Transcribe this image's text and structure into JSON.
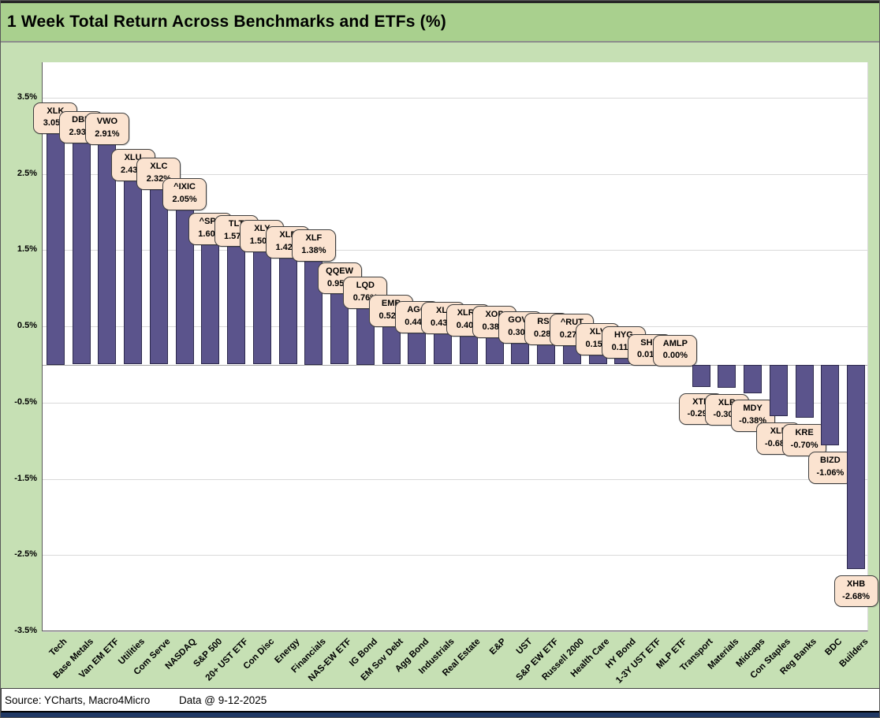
{
  "title": "1 Week Total Return Across Benchmarks and ETFs (%)",
  "footer": {
    "source": "Source: YCharts, Macro4Micro",
    "data_note": "Data @ 9-12-2025"
  },
  "colors": {
    "canvas_bg": "#c6e0b4",
    "title_bg": "#a9d08e",
    "plot_bg": "#ffffff",
    "grid": "#d9d9d9",
    "bar_fill": "#5b548c",
    "bar_border": "#2d2a4d",
    "callout_bg": "#fbe3d0",
    "callout_border": "#3f3f3f",
    "bottom_strip": "#1f3864"
  },
  "chart_data": {
    "type": "bar",
    "title": "1 Week Total Return Across Benchmarks and ETFs (%)",
    "xlabel": "",
    "ylabel": "",
    "ylim": [
      -3.5,
      3.5
    ],
    "grid": true,
    "legend": false,
    "yticks": [
      {
        "label": "3.5%",
        "value": 3.5
      },
      {
        "label": "2.5%",
        "value": 2.5
      },
      {
        "label": "1.5%",
        "value": 1.5
      },
      {
        "label": "0.5%",
        "value": 0.5
      },
      {
        "label": "-0.5%",
        "value": -0.5
      },
      {
        "label": "-1.5%",
        "value": -1.5
      },
      {
        "label": "-2.5%",
        "value": -2.5
      },
      {
        "label": "-3.5%",
        "value": -3.5
      }
    ],
    "categories": [
      "Tech",
      "Base Metals",
      "Van EM ETF",
      "Utilities",
      "Com Serve",
      "NASDAQ",
      "S&P 500",
      "20+ UST ETF",
      "Con Disc",
      "Energy",
      "Financials",
      "NAS-EW ETF",
      "IG Bond",
      "EM Sov Debt",
      "Agg Bond",
      "Industrials",
      "Real Estate",
      "E&P",
      "UST",
      "S&P EW ETF",
      "Russell 2000",
      "Health Care",
      "HY Bond",
      "1-3Y UST ETF",
      "MLP ETF",
      "Transport",
      "Materials",
      "Midcaps",
      "Con Staples",
      "Reg Banks",
      "BDC",
      "Builders"
    ],
    "bars": [
      {
        "category": "Tech",
        "ticker": "XLK",
        "value": 3.05,
        "label": "3.05%"
      },
      {
        "category": "Base Metals",
        "ticker": "DBB",
        "value": 2.93,
        "label": "2.93%"
      },
      {
        "category": "Van EM ETF",
        "ticker": "VWO",
        "value": 2.91,
        "label": "2.91%"
      },
      {
        "category": "Utilities",
        "ticker": "XLU",
        "value": 2.43,
        "label": "2.43%"
      },
      {
        "category": "Com Serve",
        "ticker": "XLC",
        "value": 2.32,
        "label": "2.32%"
      },
      {
        "category": "NASDAQ",
        "ticker": "^IXIC",
        "value": 2.05,
        "label": "2.05%"
      },
      {
        "category": "S&P 500",
        "ticker": "^SPX",
        "value": 1.6,
        "label": "1.60%"
      },
      {
        "category": "20+ UST ETF",
        "ticker": "TLT",
        "value": 1.57,
        "label": "1.57%"
      },
      {
        "category": "Con Disc",
        "ticker": "XLY",
        "value": 1.5,
        "label": "1.50%"
      },
      {
        "category": "Energy",
        "ticker": "XLE",
        "value": 1.42,
        "label": "1.42%"
      },
      {
        "category": "Financials",
        "ticker": "XLF",
        "value": 1.38,
        "label": "1.38%"
      },
      {
        "category": "NAS-EW ETF",
        "ticker": "QQEW",
        "value": 0.95,
        "label": "0.95%"
      },
      {
        "category": "IG Bond",
        "ticker": "LQD",
        "value": 0.76,
        "label": "0.76%"
      },
      {
        "category": "EM Sov Debt",
        "ticker": "EMB",
        "value": 0.52,
        "label": "0.52%"
      },
      {
        "category": "Agg Bond",
        "ticker": "AGG",
        "value": 0.44,
        "label": "0.44%"
      },
      {
        "category": "Industrials",
        "ticker": "XLI",
        "value": 0.43,
        "label": "0.43%"
      },
      {
        "category": "Real Estate",
        "ticker": "XLRE",
        "value": 0.4,
        "label": "0.40%"
      },
      {
        "category": "E&P",
        "ticker": "XOP",
        "value": 0.38,
        "label": "0.38%"
      },
      {
        "category": "UST",
        "ticker": "GOVT",
        "value": 0.3,
        "label": "0.30%"
      },
      {
        "category": "S&P EW ETF",
        "ticker": "RSP",
        "value": 0.28,
        "label": "0.28%"
      },
      {
        "category": "Russell 2000",
        "ticker": "^RUT",
        "value": 0.27,
        "label": "0.27%"
      },
      {
        "category": "Health Care",
        "ticker": "XLV",
        "value": 0.15,
        "label": "0.15%"
      },
      {
        "category": "HY Bond",
        "ticker": "HYG",
        "value": 0.11,
        "label": "0.11%"
      },
      {
        "category": "1-3Y UST ETF",
        "ticker": "SHY",
        "value": 0.01,
        "label": "0.01%"
      },
      {
        "category": "MLP ETF",
        "ticker": "AMLP",
        "value": 0.0,
        "label": "0.00%"
      },
      {
        "category": "Transport",
        "ticker": "XTN",
        "value": -0.29,
        "label": "-0.29%"
      },
      {
        "category": "Materials",
        "ticker": "XLB",
        "value": -0.3,
        "label": "-0.30%"
      },
      {
        "category": "Midcaps",
        "ticker": "MDY",
        "value": -0.38,
        "label": "-0.38%"
      },
      {
        "category": "Con Staples",
        "ticker": "XLP",
        "value": -0.68,
        "label": "-0.68%"
      },
      {
        "category": "Reg Banks",
        "ticker": "KRE",
        "value": -0.7,
        "label": "-0.70%"
      },
      {
        "category": "BDC",
        "ticker": "BIZD",
        "value": -1.06,
        "label": "-1.06%"
      },
      {
        "category": "Builders",
        "ticker": "XHB",
        "value": -2.68,
        "label": "-2.68%"
      }
    ]
  }
}
